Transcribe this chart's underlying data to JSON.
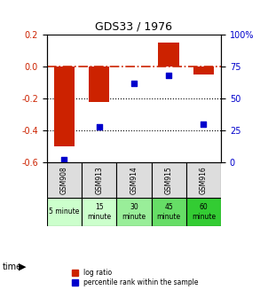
{
  "title": "GDS33 / 1976",
  "samples": [
    "GSM908",
    "GSM913",
    "GSM914",
    "GSM915",
    "GSM916"
  ],
  "log_ratio": [
    -0.5,
    -0.22,
    0.0,
    0.15,
    -0.05
  ],
  "percentile_rank": [
    2.5,
    28.0,
    62.0,
    68.0,
    30.0
  ],
  "bar_color": "#cc2200",
  "dot_color": "#0000cc",
  "left_ylim": [
    -0.6,
    0.2
  ],
  "right_ylim": [
    0,
    100
  ],
  "left_yticks": [
    0.2,
    0.0,
    -0.2,
    -0.4,
    -0.6
  ],
  "right_yticks": [
    100,
    75,
    50,
    25,
    0
  ],
  "time_labels": [
    "5 minute",
    "15\nminute",
    "30\nminute",
    "45\nminute",
    "60\nminute"
  ],
  "time_colors": [
    "#ccffcc",
    "#ccffcc",
    "#99ee99",
    "#66dd66",
    "#33cc33"
  ],
  "gsm_bg": "#dddddd",
  "legend_bar_label": "log ratio",
  "legend_dot_label": "percentile rank within the sample",
  "zero_line_color": "#cc2200",
  "dotted_line_color": "#000000",
  "bar_width": 0.6
}
